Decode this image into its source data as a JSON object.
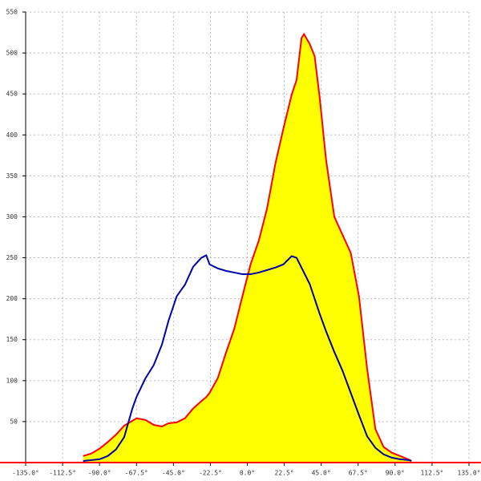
{
  "chart_data": {
    "type": "area",
    "x": [
      -100,
      -95,
      -90,
      -85,
      -80,
      -75,
      -70,
      -67.5,
      -62,
      -57,
      -52,
      -48,
      -43,
      -38,
      -33,
      -28,
      -25,
      -23,
      -18,
      -13,
      -8,
      -3,
      2,
      7,
      12,
      17,
      22,
      27,
      30,
      33,
      34.5,
      38,
      41,
      44,
      48,
      53,
      58,
      63,
      68,
      73,
      78,
      83,
      88,
      93,
      98,
      100
    ],
    "series": [
      {
        "color": "#ff0000",
        "fill": "#ffff00",
        "values": [
          8,
          11,
          17,
          25,
          34,
          45,
          51,
          54,
          52,
          46,
          44,
          48,
          49,
          54,
          66,
          75,
          80,
          85,
          103,
          134,
          163,
          203,
          242,
          271,
          310,
          364,
          408,
          449,
          467,
          518,
          523,
          511,
          496,
          447,
          369,
          300,
          278,
          256,
          203,
          114,
          41,
          19,
          12,
          8,
          4,
          2
        ]
      },
      {
        "color": "#0000aa",
        "values": [
          2,
          3,
          4,
          8,
          16,
          31,
          66,
          80,
          103,
          119,
          144,
          173,
          203,
          217,
          239,
          250,
          253,
          242,
          237,
          234,
          232,
          230,
          230,
          232,
          235,
          238,
          242,
          252,
          250,
          238,
          232,
          218,
          200,
          182,
          160,
          135,
          112,
          85,
          58,
          32,
          18,
          10,
          6,
          4,
          3,
          2
        ]
      }
    ],
    "xlim": [
      -135,
      135
    ],
    "xticks": [
      {
        "value": -135,
        "label": "-135.0°"
      },
      {
        "value": -112.5,
        "label": "-112.5°"
      },
      {
        "value": -90,
        "label": "-90.0°"
      },
      {
        "value": -67.5,
        "label": "-67.5°"
      },
      {
        "value": -45,
        "label": "-45.0°"
      },
      {
        "value": -22.5,
        "label": "-22.5°"
      },
      {
        "value": 0,
        "label": "0.0°"
      },
      {
        "value": 22.5,
        "label": "22.5°"
      },
      {
        "value": 45,
        "label": "45.0°"
      },
      {
        "value": 67.5,
        "label": "67.5°"
      },
      {
        "value": 90,
        "label": "90.0°"
      },
      {
        "value": 112.5,
        "label": "112.5°"
      },
      {
        "value": 135,
        "label": "135.0°"
      }
    ],
    "ylim": [
      0,
      550
    ],
    "yticks": [
      50,
      100,
      150,
      200,
      250,
      300,
      350,
      400,
      450,
      500,
      550
    ],
    "grid": true
  }
}
